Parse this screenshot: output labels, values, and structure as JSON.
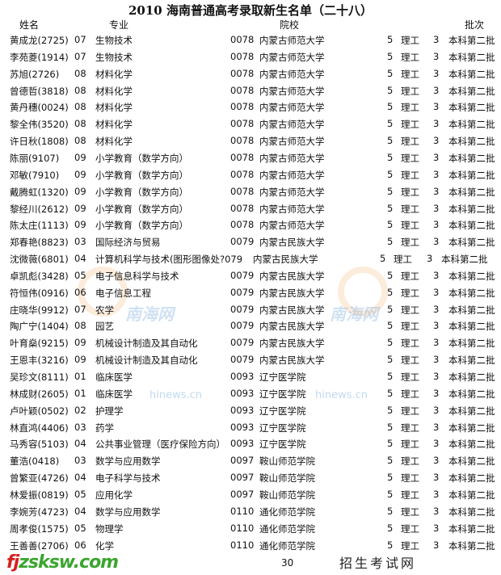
{
  "title": "2010 海南普通高考录取新生名单（二十八）",
  "headers": {
    "name": "姓名",
    "major": "专业",
    "school": "院校",
    "batch": "批次"
  },
  "rows": [
    [
      "黄成龙(2725)",
      "07",
      "生物技术",
      "0078",
      "内蒙古师范大学",
      "5",
      "理工",
      "3",
      "本科第二批"
    ],
    [
      "李苑菱(1914)",
      "07",
      "生物技术",
      "0078",
      "内蒙古师范大学",
      "5",
      "理工",
      "3",
      "本科第二批"
    ],
    [
      "苏旭(2726)",
      "08",
      "材料化学",
      "0078",
      "内蒙古师范大学",
      "5",
      "理工",
      "3",
      "本科第二批"
    ],
    [
      "曾德哲(3818)",
      "08",
      "材料化学",
      "0078",
      "内蒙古师范大学",
      "5",
      "理工",
      "3",
      "本科第二批"
    ],
    [
      "黄丹穗(0024)",
      "08",
      "材料化学",
      "0078",
      "内蒙古师范大学",
      "5",
      "理工",
      "3",
      "本科第二批"
    ],
    [
      "黎全伟(3520)",
      "08",
      "材料化学",
      "0078",
      "内蒙古师范大学",
      "5",
      "理工",
      "3",
      "本科第二批"
    ],
    [
      "许日秋(1808)",
      "08",
      "材料化学",
      "0078",
      "内蒙古师范大学",
      "5",
      "理工",
      "3",
      "本科第二批"
    ],
    [
      "陈丽(9107)",
      "09",
      "小学教育（数学方向）",
      "0078",
      "内蒙古师范大学",
      "5",
      "理工",
      "3",
      "本科第二批"
    ],
    [
      "邓敏(7910)",
      "09",
      "小学教育（数学方向）",
      "0078",
      "内蒙古师范大学",
      "5",
      "理工",
      "3",
      "本科第二批"
    ],
    [
      "戴腾虹(1320)",
      "09",
      "小学教育（数学方向）",
      "0078",
      "内蒙古师范大学",
      "5",
      "理工",
      "3",
      "本科第二批"
    ],
    [
      "黎经川(2612)",
      "09",
      "小学教育（数学方向）",
      "0078",
      "内蒙古师范大学",
      "5",
      "理工",
      "3",
      "本科第二批"
    ],
    [
      "陈太庄(1113)",
      "09",
      "小学教育（数学方向）",
      "0078",
      "内蒙古师范大学",
      "5",
      "理工",
      "3",
      "本科第二批"
    ],
    [
      "郑春艳(8823)",
      "03",
      "国际经济与贸易",
      "0079",
      "内蒙古民族大学",
      "5",
      "理工",
      "3",
      "本科第二批"
    ],
    [
      "沈微薇(6801)",
      "04",
      "计算机科学与技术(图形图像处?079",
      "",
      "内蒙古民族大学",
      "5",
      "理工",
      "3",
      "本科第二批"
    ],
    [
      "卓凯彪(3428)",
      "05",
      "电子信息科学与技术",
      "0079",
      "内蒙古民族大学",
      "5",
      "理工",
      "3",
      "本科第二批"
    ],
    [
      "符恒伟(0916)",
      "06",
      "电子信息工程",
      "0079",
      "内蒙古民族大学",
      "5",
      "理工",
      "3",
      "本科第二批"
    ],
    [
      "庄晓华(9912)",
      "07",
      "农学",
      "0079",
      "内蒙古民族大学",
      "5",
      "理工",
      "3",
      "本科第二批"
    ],
    [
      "陶广宁(1404)",
      "08",
      "园艺",
      "0079",
      "内蒙古民族大学",
      "5",
      "理工",
      "3",
      "本科第二批"
    ],
    [
      "叶育燊(9215)",
      "09",
      "机械设计制造及其自动化",
      "0079",
      "内蒙古民族大学",
      "5",
      "理工",
      "3",
      "本科第二批"
    ],
    [
      "王恩丰(3216)",
      "09",
      "机械设计制造及其自动化",
      "0079",
      "内蒙古民族大学",
      "5",
      "理工",
      "3",
      "本科第二批"
    ],
    [
      "吴珍文(8111)",
      "01",
      "临床医学",
      "0093",
      "辽宁医学院",
      "5",
      "理工",
      "3",
      "本科第二批"
    ],
    [
      "林成财(2605)",
      "01",
      "临床医学",
      "0093",
      "辽宁医学院",
      "5",
      "理工",
      "3",
      "本科第二批"
    ],
    [
      "卢叶颖(0502)",
      "02",
      "护理学",
      "0093",
      "辽宁医学院",
      "5",
      "理工",
      "3",
      "本科第二批"
    ],
    [
      "林直鸿(4406)",
      "03",
      "药学",
      "0093",
      "辽宁医学院",
      "5",
      "理工",
      "3",
      "本科第二批"
    ],
    [
      "马秀容(5103)",
      "04",
      "公共事业管理（医疗保险方向）",
      "0093",
      "辽宁医学院",
      "5",
      "理工",
      "3",
      "本科第二批"
    ],
    [
      "董浩(0418)",
      "03",
      "数学与应用数学",
      "0097",
      "鞍山师范学院",
      "5",
      "理工",
      "3",
      "本科第二批"
    ],
    [
      "曾繁亚(4726)",
      "04",
      "电子科学与技术",
      "0097",
      "鞍山师范学院",
      "5",
      "理工",
      "3",
      "本科第二批"
    ],
    [
      "林爱振(0819)",
      "05",
      "应用化学",
      "0097",
      "鞍山师范学院",
      "5",
      "理工",
      "3",
      "本科第二批"
    ],
    [
      "李婉芳(4723)",
      "04",
      "数学与应用数学",
      "0110",
      "通化师范学院",
      "5",
      "理工",
      "3",
      "本科第二批"
    ],
    [
      "周孝俊(1575)",
      "05",
      "物理学",
      "0110",
      "通化师范学院",
      "5",
      "理工",
      "3",
      "本科第二批"
    ],
    [
      "王善善(2706)",
      "06",
      "化学",
      "0110",
      "通化师范学院",
      "5",
      "理工",
      "3",
      "本科第二批"
    ]
  ],
  "page_number": "30",
  "watermarks": {
    "site": "南海网",
    "domain": "hinews.cn",
    "logo": "fjzsksw.com",
    "logo_sub": "招生考试网"
  }
}
